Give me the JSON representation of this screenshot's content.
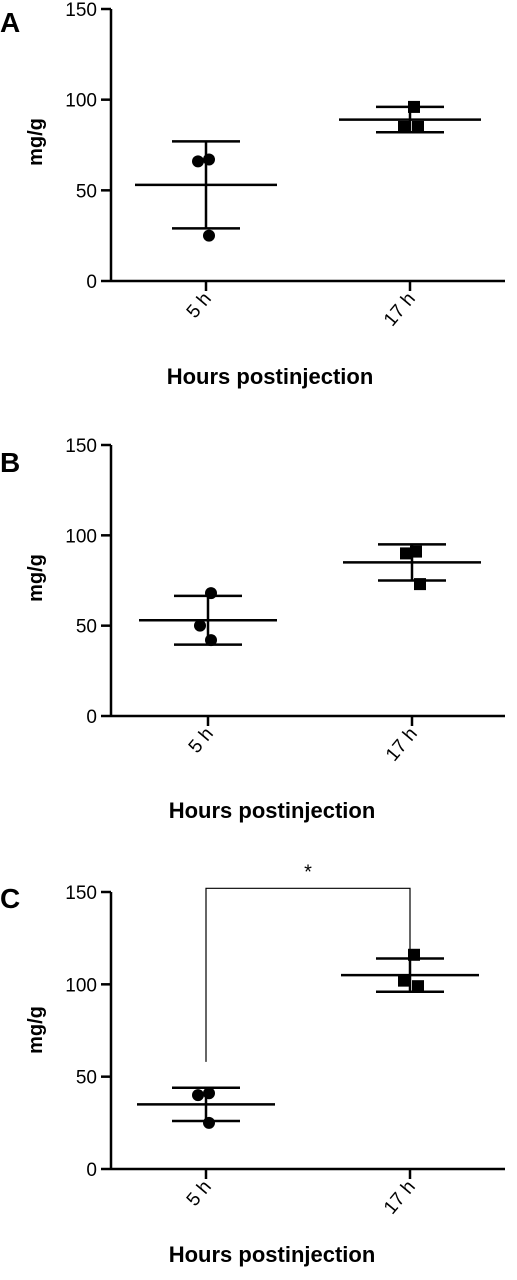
{
  "chart_data": [
    {
      "type": "scatter",
      "panel_label": "A",
      "ylabel": "mg/g",
      "xlabel": "Hours postinjection",
      "categories": [
        "5 h",
        "17 h"
      ],
      "ylim": [
        0,
        150
      ],
      "yticks": [
        0,
        50,
        100,
        150
      ],
      "series": [
        {
          "category": "5 h",
          "marker": "circle",
          "points": [
            67,
            66,
            25
          ],
          "mean": 53,
          "sd": 24
        },
        {
          "category": "17 h",
          "marker": "square",
          "points": [
            96,
            85,
            85
          ],
          "mean": 89,
          "sd": 7
        }
      ],
      "significance": null
    },
    {
      "type": "scatter",
      "panel_label": "B",
      "ylabel": "mg/g",
      "xlabel": "Hours postinjection",
      "categories": [
        "5 h",
        "17 h"
      ],
      "ylim": [
        0,
        150
      ],
      "yticks": [
        0,
        50,
        100,
        150
      ],
      "series": [
        {
          "category": "5 h",
          "marker": "circle",
          "points": [
            68,
            50,
            42
          ],
          "mean": 53,
          "sd": 13.5
        },
        {
          "category": "17 h",
          "marker": "square",
          "points": [
            91,
            90,
            73
          ],
          "mean": 85,
          "sd": 10
        }
      ],
      "significance": null
    },
    {
      "type": "scatter",
      "panel_label": "C",
      "ylabel": "mg/g",
      "xlabel": "Hours postinjection",
      "categories": [
        "5 h",
        "17 h"
      ],
      "ylim": [
        0,
        150
      ],
      "yticks": [
        0,
        50,
        100,
        150
      ],
      "series": [
        {
          "category": "5 h",
          "marker": "circle",
          "points": [
            41,
            40,
            25
          ],
          "mean": 35,
          "sd": 9
        },
        {
          "category": "17 h",
          "marker": "square",
          "points": [
            116,
            102,
            99
          ],
          "mean": 105,
          "sd": 9
        }
      ],
      "significance": {
        "label": "*",
        "from": "5 h",
        "to": "17 h",
        "bracket_y": 152,
        "left_drop_to": 58,
        "right_drop_to": 115
      }
    }
  ]
}
